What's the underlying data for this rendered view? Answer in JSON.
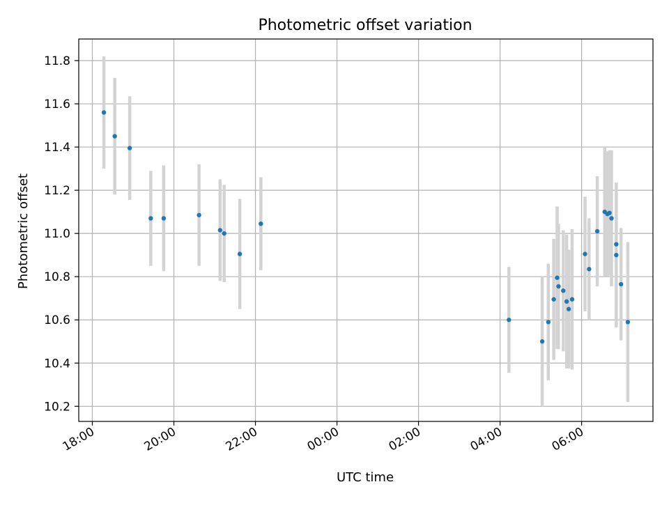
{
  "chart_data": {
    "type": "scatter",
    "title": "Photometric offset variation",
    "xlabel": "UTC time",
    "ylabel": "Photometric offset",
    "x_is_time": true,
    "xlim": [
      "17:40",
      "31:45"
    ],
    "ylim": [
      10.13,
      11.9
    ],
    "grid": true,
    "legend": "none",
    "x_ticks": [
      {
        "label": "18:00",
        "t": "18:00"
      },
      {
        "label": "20:00",
        "t": "20:00"
      },
      {
        "label": "22:00",
        "t": "22:00"
      },
      {
        "label": "00:00",
        "t": "24:00"
      },
      {
        "label": "02:00",
        "t": "26:00"
      },
      {
        "label": "04:00",
        "t": "28:00"
      },
      {
        "label": "06:00",
        "t": "30:00"
      }
    ],
    "y_ticks": [
      {
        "label": "10.2",
        "v": 10.2
      },
      {
        "label": "10.4",
        "v": 10.4
      },
      {
        "label": "10.6",
        "v": 10.6
      },
      {
        "label": "10.8",
        "v": 10.8
      },
      {
        "label": "11.0",
        "v": 11.0
      },
      {
        "label": "11.2",
        "v": 11.2
      },
      {
        "label": "11.4",
        "v": 11.4
      },
      {
        "label": "11.6",
        "v": 11.6
      },
      {
        "label": "11.8",
        "v": 11.8
      }
    ],
    "colors": {
      "point": "#1f77b4",
      "errorbar": "#d3d3d3",
      "grid": "#b0b0b0"
    },
    "points": [
      {
        "t": "18:17",
        "y": 11.56,
        "err": 0.26
      },
      {
        "t": "18:33",
        "y": 11.45,
        "err": 0.27
      },
      {
        "t": "18:55",
        "y": 11.395,
        "err": 0.24
      },
      {
        "t": "19:26",
        "y": 11.07,
        "err": 0.22
      },
      {
        "t": "19:45",
        "y": 11.07,
        "err": 0.245
      },
      {
        "t": "20:37",
        "y": 11.085,
        "err": 0.235
      },
      {
        "t": "21:08",
        "y": 11.015,
        "err": 0.235
      },
      {
        "t": "21:14",
        "y": 11.0,
        "err": 0.225
      },
      {
        "t": "21:37",
        "y": 10.905,
        "err": 0.255
      },
      {
        "t": "22:08",
        "y": 11.045,
        "err": 0.215
      },
      {
        "t": "28:13",
        "y": 10.6,
        "err": 0.245
      },
      {
        "t": "29:02",
        "y": 10.5,
        "err": 0.3
      },
      {
        "t": "29:11",
        "y": 10.59,
        "err": 0.27
      },
      {
        "t": "29:19",
        "y": 10.695,
        "err": 0.28
      },
      {
        "t": "29:24",
        "y": 10.795,
        "err": 0.33
      },
      {
        "t": "29:26",
        "y": 10.755,
        "err": 0.29
      },
      {
        "t": "29:33",
        "y": 10.735,
        "err": 0.28
      },
      {
        "t": "29:38",
        "y": 10.685,
        "err": 0.31
      },
      {
        "t": "29:41",
        "y": 10.65,
        "err": 0.275
      },
      {
        "t": "29:46",
        "y": 10.695,
        "err": 0.325
      },
      {
        "t": "30:05",
        "y": 10.905,
        "err": 0.265
      },
      {
        "t": "30:11",
        "y": 10.835,
        "err": 0.235
      },
      {
        "t": "30:23",
        "y": 11.01,
        "err": 0.255
      },
      {
        "t": "30:34",
        "y": 11.1,
        "err": 0.3
      },
      {
        "t": "30:38",
        "y": 11.09,
        "err": 0.29
      },
      {
        "t": "30:41",
        "y": 11.095,
        "err": 0.29
      },
      {
        "t": "30:44",
        "y": 11.07,
        "err": 0.315
      },
      {
        "t": "30:51",
        "y": 10.95,
        "err": 0.285
      },
      {
        "t": "30:51",
        "y": 10.9,
        "err": 0.335
      },
      {
        "t": "30:58",
        "y": 10.765,
        "err": 0.26
      },
      {
        "t": "31:08",
        "y": 10.59,
        "err": 0.37
      }
    ]
  }
}
